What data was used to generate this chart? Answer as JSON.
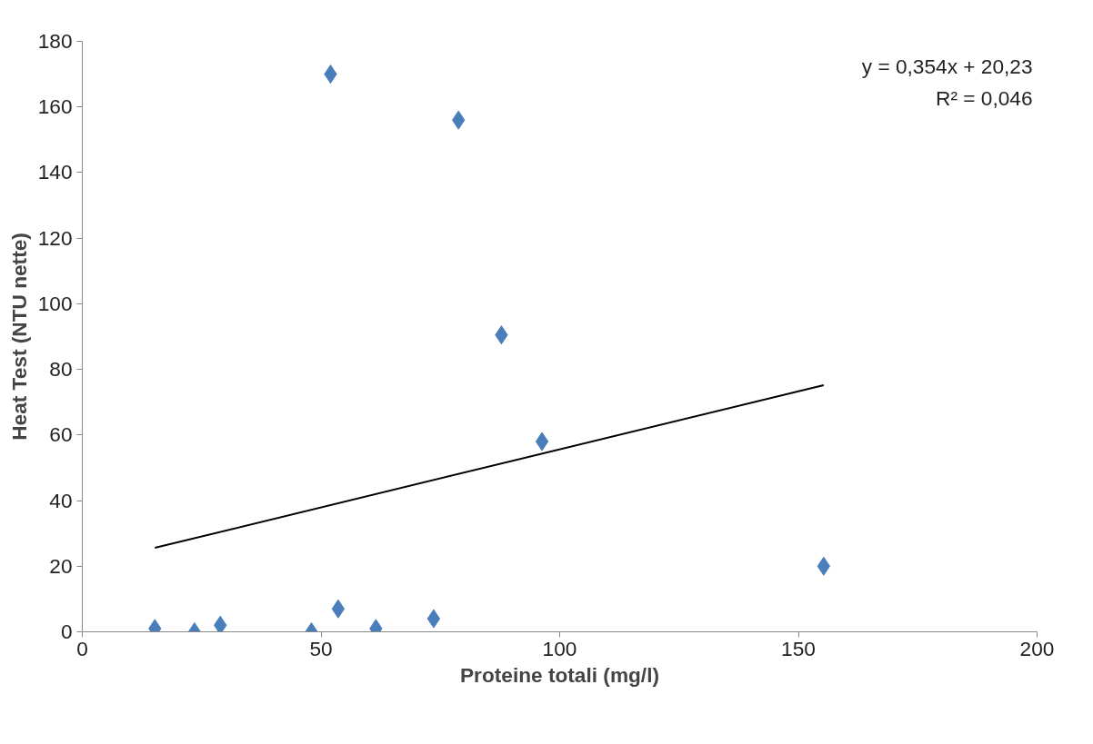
{
  "chart_data": {
    "type": "scatter",
    "xlabel": "Proteine totali (mg/l)",
    "ylabel": "Heat Test (NTU nette)",
    "xlim": [
      0,
      200
    ],
    "xticks": [
      0,
      50,
      100,
      150,
      200
    ],
    "ylim": [
      0,
      180
    ],
    "yticks": [
      0,
      20,
      40,
      60,
      80,
      100,
      120,
      140,
      160,
      180
    ],
    "grid": false,
    "marker": "diamond",
    "annotations": [
      "y = 0,354x + 20,23",
      "R² = 0,046"
    ],
    "series": [
      {
        "color": "#4a7ebb",
        "x": [
          15.2,
          23.5,
          28.9,
          48.0,
          52.0,
          53.6,
          61.5,
          73.6,
          78.8,
          87.8,
          96.3,
          155.3
        ],
        "values": [
          1,
          0,
          2,
          0,
          170,
          7,
          1,
          4,
          156,
          90.5,
          58,
          20
        ]
      },
      {
        "type": "line",
        "color": "#000000",
        "x": [
          15.2,
          155.3
        ],
        "values": [
          25.6,
          75.2
        ],
        "line_style": "solid",
        "marker": "none"
      }
    ]
  }
}
